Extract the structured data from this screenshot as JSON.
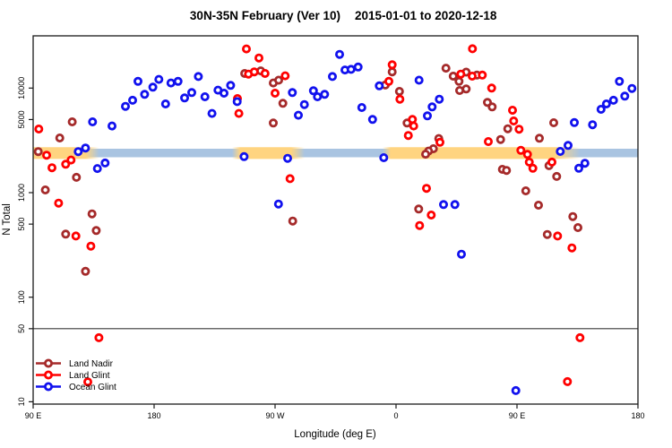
{
  "chart_data": {
    "type": "scatter",
    "title": "30N-35N February (Ver 10)   2015-01-01 to 2020-12-18",
    "title_part1": "30N-35N February (Ver 10)",
    "title_part2": "2015-01-01 to 2020-12-18",
    "xlabel": "Longitude (deg E)",
    "ylabel": "N Total",
    "x_axis": {
      "tick_labels": [
        "90 E",
        "180",
        "90 W",
        "0",
        "90 E",
        "180"
      ],
      "tick_lons": [
        90,
        180,
        270,
        360,
        450,
        540
      ],
      "range_deg_e": [
        90,
        540
      ]
    },
    "y_axis": {
      "scale": "log",
      "tick_labels": [
        "10",
        "50",
        "100",
        "500",
        "1000",
        "5000",
        "10000"
      ],
      "tick_values": [
        10,
        50,
        100,
        500,
        1000,
        5000,
        10000
      ],
      "range": [
        9.5,
        31600
      ]
    },
    "reference_line_n": 50,
    "bands": {
      "ocean_band": {
        "color": "#A9C4E1",
        "lon_start": 90,
        "lon_end": 540,
        "n_low": 2180,
        "n_high": 2630
      },
      "land_band_color": "#FFD480",
      "land_band_segments": [
        {
          "from": 90,
          "to": 139,
          "fade_in": 0,
          "fade_out": 10
        },
        {
          "from": 238,
          "to": 292,
          "fade_in": 6,
          "fade_out": 10
        },
        {
          "from": 350,
          "to": 497,
          "fade_in": 6,
          "fade_out": 18
        }
      ],
      "land_band_n_low": 2100,
      "land_band_n_high": 2720
    },
    "legend": {
      "position": "bottom-left",
      "items": [
        {
          "label": "Land Nadir",
          "color": "#A52A2A"
        },
        {
          "label": "Land Glint",
          "color": "#FF0000"
        },
        {
          "label": "Ocean Glint",
          "color": "#1111EE"
        }
      ]
    },
    "series": [
      {
        "name": "Land Nadir",
        "color": "#A52A2A",
        "points": [
          [
            119.1,
            4750
          ],
          [
            109.8,
            3330
          ],
          [
            93.8,
            2470
          ],
          [
            122.2,
            1400
          ],
          [
            99.1,
            1060
          ],
          [
            133.8,
            626
          ],
          [
            136.9,
            434
          ],
          [
            114.2,
            401
          ],
          [
            128.9,
            177
          ],
          [
            247.4,
            13800
          ],
          [
            259.3,
            14600
          ],
          [
            268.7,
            11200
          ],
          [
            272.7,
            11900
          ],
          [
            275.8,
            7150
          ],
          [
            268.7,
            4630
          ],
          [
            283.1,
            535
          ],
          [
            357.1,
            14300
          ],
          [
            352.0,
            10700
          ],
          [
            362.5,
            9290
          ],
          [
            368.2,
            4630
          ],
          [
            376.9,
            697
          ],
          [
            397.1,
            15500
          ],
          [
            402.5,
            13000
          ],
          [
            412.2,
            14200
          ],
          [
            420.2,
            13300
          ],
          [
            406.9,
            11600
          ],
          [
            412.2,
            9810
          ],
          [
            407.3,
            9480
          ],
          [
            391.8,
            3290
          ],
          [
            387.8,
            2630
          ],
          [
            384.2,
            2500
          ],
          [
            382.0,
            2330
          ],
          [
            428.0,
            7300
          ],
          [
            431.5,
            6610
          ],
          [
            437.8,
            3220
          ],
          [
            443.1,
            4080
          ],
          [
            439.1,
            1670
          ],
          [
            442.2,
            1630
          ],
          [
            466.7,
            3310
          ],
          [
            473.8,
            1810
          ],
          [
            477.3,
            4660
          ],
          [
            479.5,
            1430
          ],
          [
            456.5,
            1040
          ],
          [
            466.0,
            759
          ],
          [
            472.5,
            398
          ],
          [
            491.5,
            590
          ],
          [
            495.3,
            463
          ]
        ]
      },
      {
        "name": "Land Glint",
        "color": "#FF0000",
        "points": [
          [
            94.2,
            4060
          ],
          [
            100.0,
            2280
          ],
          [
            104.0,
            1730
          ],
          [
            118.2,
            2050
          ],
          [
            114.2,
            1870
          ],
          [
            108.9,
            794
          ],
          [
            121.8,
            385
          ],
          [
            132.9,
            308
          ],
          [
            138.9,
            41
          ],
          [
            130.7,
            15.5
          ],
          [
            243.1,
            5720
          ],
          [
            250.2,
            13600
          ],
          [
            248.7,
            23700
          ],
          [
            258.0,
            19400
          ],
          [
            254.5,
            14300
          ],
          [
            262.5,
            13800
          ],
          [
            277.5,
            13100
          ],
          [
            270.0,
            8930
          ],
          [
            281.1,
            1360
          ],
          [
            242.0,
            7940
          ],
          [
            357.1,
            16700
          ],
          [
            354.7,
            11600
          ],
          [
            362.9,
            7830
          ],
          [
            372.2,
            5010
          ],
          [
            373.1,
            4340
          ],
          [
            369.1,
            3520
          ],
          [
            392.7,
            3030
          ],
          [
            408.2,
            13600
          ],
          [
            416.7,
            13000
          ],
          [
            424.2,
            13300
          ],
          [
            416.9,
            23800
          ],
          [
            431.1,
            10000
          ],
          [
            446.7,
            6140
          ],
          [
            447.5,
            4850
          ],
          [
            451.5,
            4040
          ],
          [
            452.9,
            2540
          ],
          [
            457.8,
            2320
          ],
          [
            459.1,
            1960
          ],
          [
            461.8,
            1710
          ],
          [
            476.0,
            1960
          ],
          [
            480.2,
            385
          ],
          [
            490.9,
            296
          ],
          [
            496.9,
            41
          ],
          [
            487.5,
            15.6
          ],
          [
            428.7,
            3080
          ],
          [
            377.5,
            485
          ],
          [
            382.7,
            1100
          ],
          [
            386.2,
            611
          ]
        ]
      },
      {
        "name": "Ocean Glint",
        "color": "#1111EE",
        "points": [
          [
            134.2,
            4750
          ],
          [
            148.7,
            4340
          ],
          [
            123.5,
            2470
          ],
          [
            128.9,
            2670
          ],
          [
            143.5,
            1920
          ],
          [
            137.8,
            1700
          ],
          [
            168.0,
            11600
          ],
          [
            183.5,
            12100
          ],
          [
            179.1,
            10200
          ],
          [
            192.5,
            11200
          ],
          [
            197.8,
            11600
          ],
          [
            212.9,
            12900
          ],
          [
            172.9,
            8710
          ],
          [
            164.0,
            7640
          ],
          [
            158.7,
            6680
          ],
          [
            188.5,
            7050
          ],
          [
            202.7,
            8050
          ],
          [
            208.0,
            9060
          ],
          [
            217.8,
            8260
          ],
          [
            227.5,
            9550
          ],
          [
            232.0,
            8930
          ],
          [
            236.9,
            10600
          ],
          [
            241.8,
            7430
          ],
          [
            223.1,
            5720
          ],
          [
            246.9,
            2210
          ],
          [
            279.3,
            2130
          ],
          [
            272.5,
            778
          ],
          [
            282.9,
            9060
          ],
          [
            298.5,
            9420
          ],
          [
            301.5,
            8260
          ],
          [
            306.9,
            8710
          ],
          [
            291.8,
            6950
          ],
          [
            287.3,
            5500
          ],
          [
            318.0,
            21000
          ],
          [
            312.7,
            12900
          ],
          [
            322.0,
            14900
          ],
          [
            326.5,
            15100
          ],
          [
            331.8,
            15900
          ],
          [
            334.5,
            6520
          ],
          [
            342.5,
            5010
          ],
          [
            347.5,
            10500
          ],
          [
            377.1,
            11900
          ],
          [
            392.2,
            7830
          ],
          [
            386.9,
            6610
          ],
          [
            383.3,
            5420
          ],
          [
            350.9,
            2160
          ],
          [
            395.3,
            769
          ],
          [
            403.8,
            769
          ],
          [
            408.7,
            258
          ],
          [
            492.7,
            4680
          ],
          [
            488.0,
            2830
          ],
          [
            482.2,
            2480
          ],
          [
            496.0,
            1710
          ],
          [
            500.5,
            1910
          ],
          [
            506.2,
            4460
          ],
          [
            512.5,
            6270
          ],
          [
            516.5,
            7050
          ],
          [
            521.8,
            7640
          ],
          [
            526.2,
            11600
          ],
          [
            530.2,
            8380
          ],
          [
            535.5,
            9930
          ],
          [
            449.1,
            12.8
          ]
        ]
      }
    ]
  }
}
